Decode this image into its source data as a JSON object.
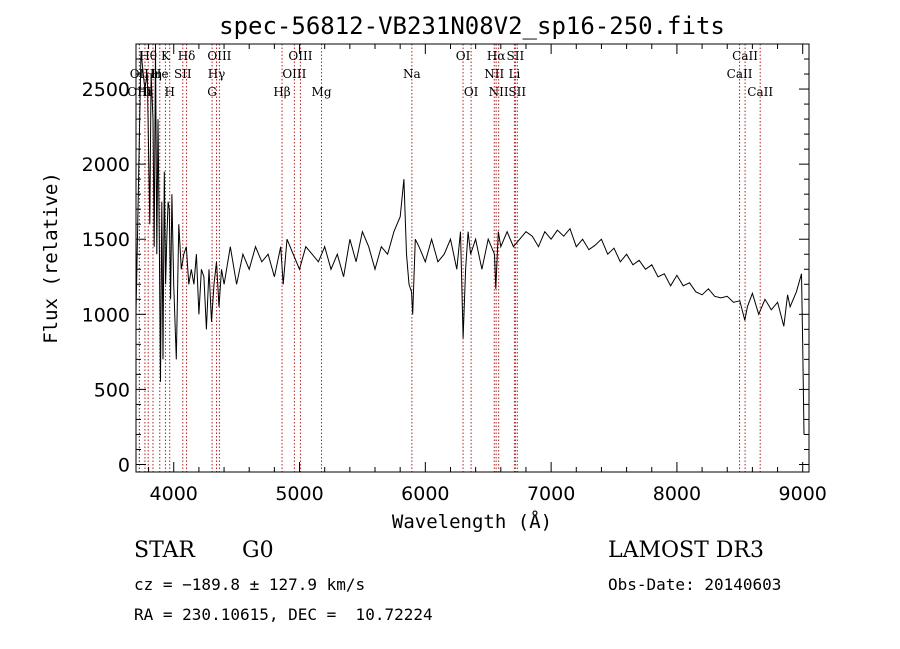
{
  "chart_data": {
    "type": "line",
    "title": "spec-56812-VB231N08V2_sp16-250.fits",
    "xlabel": "Wavelength (Å)",
    "ylabel": "Flux (relative)",
    "xlim": [
      3700,
      9050
    ],
    "ylim": [
      -50,
      2800
    ],
    "xticks": [
      4000,
      5000,
      6000,
      7000,
      8000,
      9000
    ],
    "yticks": [
      0,
      500,
      1000,
      1500,
      2000,
      2500
    ],
    "grid": false,
    "legend": "none",
    "line_color": "#000000",
    "marker_color": "#b22222",
    "spectral_lines": [
      {
        "label": "Hθ",
        "wavelength": 3797,
        "row": 0
      },
      {
        "label": "K",
        "wavelength": 3934,
        "row": 0
      },
      {
        "label": "Hδ",
        "wavelength": 4102,
        "row": 0
      },
      {
        "label": "OIII",
        "wavelength": 4363,
        "row": 0
      },
      {
        "label": "OIII",
        "wavelength": 5007,
        "row": 0
      },
      {
        "label": "OI",
        "wavelength": 6300,
        "row": 0
      },
      {
        "label": "Hα",
        "wavelength": 6563,
        "row": 0
      },
      {
        "label": "SII",
        "wavelength": 6716,
        "row": 0
      },
      {
        "label": "CaII",
        "wavelength": 8542,
        "row": 0
      },
      {
        "label": "OII",
        "wavelength": 3727,
        "row": 1
      },
      {
        "label": "Hη",
        "wavelength": 3835,
        "row": 1
      },
      {
        "label": "He",
        "wavelength": 3889,
        "row": 1
      },
      {
        "label": "SII",
        "wavelength": 4072,
        "row": 1
      },
      {
        "label": "Hγ",
        "wavelength": 4340,
        "row": 1
      },
      {
        "label": "OIII",
        "wavelength": 4959,
        "row": 1
      },
      {
        "label": "Na",
        "wavelength": 5893,
        "row": 1
      },
      {
        "label": "NII",
        "wavelength": 6548,
        "row": 1
      },
      {
        "label": "Li",
        "wavelength": 6708,
        "row": 1
      },
      {
        "label": "CaII",
        "wavelength": 8498,
        "row": 1
      },
      {
        "label": "OIII",
        "wavelength": 3727,
        "row": 2
      },
      {
        "label": "Hι",
        "wavelength": 3771,
        "row": 2
      },
      {
        "label": "H",
        "wavelength": 3968,
        "row": 2
      },
      {
        "label": "G",
        "wavelength": 4305,
        "row": 2
      },
      {
        "label": "Hβ",
        "wavelength": 4861,
        "row": 2
      },
      {
        "label": "Mg",
        "wavelength": 5175,
        "row": 2
      },
      {
        "label": "OI",
        "wavelength": 6364,
        "row": 2
      },
      {
        "label": "NII",
        "wavelength": 6583,
        "row": 2
      },
      {
        "label": "SII",
        "wavelength": 6731,
        "row": 2
      },
      {
        "label": "CaII",
        "wavelength": 8662,
        "row": 2
      }
    ],
    "series": [
      {
        "x": [
          3700,
          3740,
          3770,
          3790,
          3810,
          3820,
          3835,
          3845,
          3855,
          3865,
          3875,
          3885,
          3895,
          3905,
          3915,
          3925,
          3935,
          3945,
          3955,
          3965,
          3975,
          3985,
          4000,
          4020,
          4040,
          4060,
          4080,
          4100,
          4120,
          4140,
          4160,
          4180,
          4200,
          4220,
          4240,
          4260,
          4280,
          4300,
          4320,
          4340,
          4360,
          4380,
          4400,
          4450,
          4500,
          4550,
          4600,
          4650,
          4700,
          4750,
          4800,
          4850,
          4870,
          4900,
          4950,
          5000,
          5050,
          5100,
          5150,
          5200,
          5250,
          5300,
          5350,
          5400,
          5450,
          5500,
          5550,
          5600,
          5650,
          5700,
          5750,
          5800,
          5830,
          5850,
          5870,
          5890,
          5900,
          5920,
          5950,
          6000,
          6050,
          6100,
          6150,
          6200,
          6250,
          6280,
          6300,
          6320,
          6340,
          6360,
          6400,
          6450,
          6500,
          6550,
          6560,
          6580,
          6600,
          6650,
          6700,
          6750,
          6800,
          6850,
          6900,
          6950,
          7000,
          7050,
          7100,
          7150,
          7200,
          7250,
          7300,
          7350,
          7400,
          7450,
          7500,
          7550,
          7600,
          7650,
          7700,
          7750,
          7800,
          7850,
          7900,
          7950,
          8000,
          8050,
          8100,
          8150,
          8200,
          8250,
          8300,
          8350,
          8400,
          8450,
          8500,
          8540,
          8560,
          8600,
          8650,
          8700,
          8750,
          8800,
          8850,
          8880,
          8900,
          8950,
          8990,
          9000,
          9010
        ],
        "y": [
          1000,
          2750,
          2500,
          2600,
          1600,
          2600,
          2300,
          1450,
          2800,
          1400,
          2300,
          1500,
          550,
          1750,
          700,
          1950,
          1200,
          1500,
          1750,
          1700,
          1100,
          1800,
          1200,
          700,
          1600,
          1300,
          1400,
          1450,
          1200,
          1300,
          1200,
          1400,
          1000,
          1300,
          1250,
          900,
          1300,
          950,
          1200,
          1350,
          1050,
          1300,
          1200,
          1450,
          1200,
          1400,
          1300,
          1450,
          1350,
          1400,
          1250,
          1450,
          1200,
          1500,
          1400,
          1300,
          1450,
          1400,
          1350,
          1450,
          1300,
          1400,
          1250,
          1500,
          1350,
          1550,
          1450,
          1300,
          1450,
          1400,
          1550,
          1650,
          1900,
          1400,
          1200,
          1150,
          1000,
          1500,
          1450,
          1350,
          1500,
          1350,
          1400,
          1500,
          1300,
          1550,
          840,
          1300,
          1550,
          1400,
          1500,
          1300,
          1500,
          1400,
          1170,
          1550,
          1450,
          1550,
          1450,
          1500,
          1550,
          1520,
          1450,
          1550,
          1500,
          1560,
          1520,
          1570,
          1450,
          1500,
          1430,
          1460,
          1500,
          1400,
          1440,
          1350,
          1400,
          1330,
          1360,
          1300,
          1330,
          1250,
          1270,
          1190,
          1260,
          1190,
          1210,
          1150,
          1130,
          1170,
          1120,
          1110,
          1120,
          1080,
          1090,
          960,
          1050,
          1140,
          1000,
          1100,
          1030,
          1080,
          920,
          1130,
          1050,
          1150,
          1270,
          800,
          200
        ]
      }
    ]
  },
  "info": {
    "object_class": "STAR",
    "subclass": "G0",
    "survey": "LAMOST DR3",
    "redshift": "cz = −189.8 ± 127.9 km/s",
    "obs_date": "Obs-Date: 20140603",
    "coords": "RA = 230.10615, DEC =  10.72224"
  }
}
